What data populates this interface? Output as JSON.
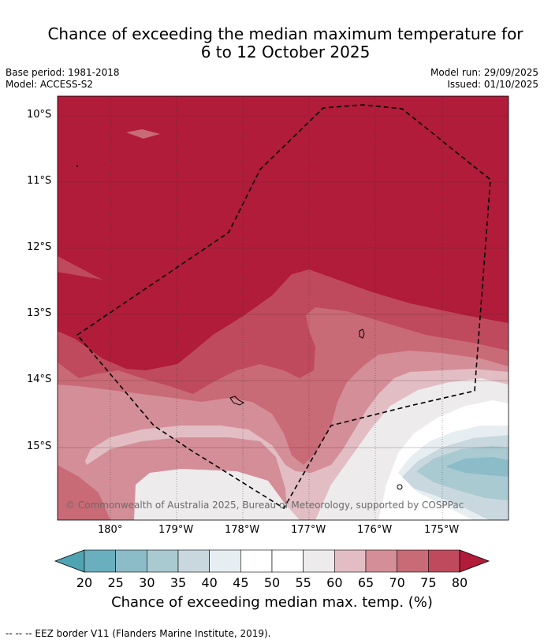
{
  "title_line1": "Chance of exceeding the median maximum temperature for",
  "title_line2": "6 to 12 October 2025",
  "base_period": "Base period: 1981-2018",
  "model": "Model: ACCESS-S2",
  "model_run": "Model run: 29/09/2025",
  "issued": "Issued: 01/10/2025",
  "copyright": "© Commonwealth of Australia 2025, Bureau of Meteorology, supported by COSPPac",
  "lat_labels": [
    "10°S",
    "11°S",
    "12°S",
    "13°S",
    "14°S",
    "15°S"
  ],
  "lon_labels": [
    "180°",
    "179°W",
    "178°W",
    "177°W",
    "176°W",
    "175°W"
  ],
  "colorbar": {
    "title": "Chance of exceeding median max. temp. (%)",
    "ticks": [
      "20",
      "25",
      "30",
      "35",
      "40",
      "45",
      "50",
      "55",
      "60",
      "65",
      "70",
      "75",
      "80"
    ],
    "colors": [
      "#69afbd",
      "#8bbcc8",
      "#a9cad1",
      "#c9d8de",
      "#e7eef2",
      "#ffffff",
      "#ffffff",
      "#eeebed",
      "#e2bec4",
      "#d48e98",
      "#c96a77",
      "#bf4a5d"
    ],
    "under_color": "#4fa4b3",
    "over_color": "#b01c3a"
  },
  "footer": "--  --  -- EEZ border V11 (Flanders Marine Institute, 2019)."
}
